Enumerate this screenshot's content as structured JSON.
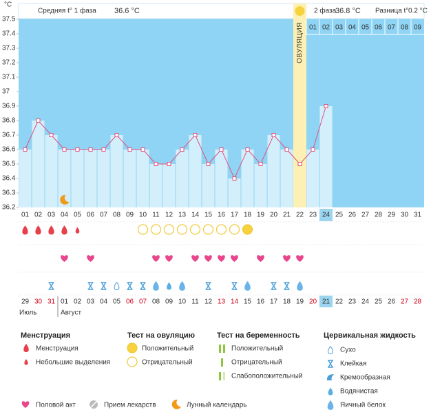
{
  "chart_data": {
    "type": "line",
    "unit": "°C",
    "categories": [
      "01",
      "02",
      "03",
      "04",
      "05",
      "06",
      "07",
      "08",
      "09",
      "10",
      "11",
      "12",
      "13",
      "14",
      "15",
      "16",
      "17",
      "18",
      "19",
      "20",
      "21",
      "22",
      "23",
      "24",
      "25",
      "26",
      "27",
      "28",
      "29",
      "30",
      "31"
    ],
    "values": [
      36.6,
      36.8,
      36.7,
      36.6,
      36.6,
      36.6,
      36.6,
      36.7,
      36.6,
      36.6,
      36.5,
      36.5,
      36.6,
      36.7,
      36.5,
      36.6,
      36.4,
      36.6,
      36.5,
      36.7,
      36.6,
      36.5,
      36.6,
      36.9,
      null,
      null,
      null,
      null,
      null,
      null,
      null
    ],
    "ylim": [
      36.2,
      37.5
    ],
    "yticks": [
      36.2,
      36.3,
      36.4,
      36.5,
      36.6,
      36.7,
      36.8,
      36.9,
      37,
      37.1,
      37.2,
      37.3,
      37.4,
      37.5
    ],
    "color": "#e0507e",
    "background": "#8fd4f4",
    "bar_color": "#d4effc",
    "ovulation_day": "22",
    "ovulation_label": "ОВУЛЯЦИЯ",
    "today": "24",
    "lunar_day": "04"
  },
  "header": {
    "phase1_label": "Средняя t° 1 фаза",
    "phase1_value": "36.6 °C",
    "phase2_label": "2 фаза",
    "phase2_value": "36.8 °C",
    "diff_label": "Разница t°",
    "diff_value": "0.2 °C",
    "phase2_days": [
      "01",
      "02",
      "03",
      "04",
      "05",
      "06",
      "07",
      "08",
      "09"
    ]
  },
  "rows": {
    "menstruation": [
      "heavy",
      "heavy",
      "heavy",
      "heavy",
      "light",
      null,
      null,
      null,
      null,
      null,
      null,
      null,
      null,
      null,
      null,
      null,
      null,
      null,
      null,
      null,
      null,
      null,
      null,
      null,
      null,
      null,
      null,
      null,
      null,
      null,
      null
    ],
    "ovulation_test": [
      null,
      null,
      null,
      null,
      null,
      null,
      null,
      null,
      null,
      "negative",
      "negative",
      "negative",
      "negative",
      "negative",
      "negative",
      "negative",
      "negative",
      "positive",
      null,
      null,
      null,
      null,
      null,
      null,
      null,
      null,
      null,
      null,
      null,
      null,
      null
    ],
    "intercourse": [
      false,
      false,
      false,
      true,
      false,
      true,
      false,
      false,
      false,
      false,
      true,
      true,
      false,
      true,
      true,
      true,
      true,
      false,
      true,
      false,
      true,
      true,
      false,
      false,
      false,
      false,
      false,
      false,
      false,
      false,
      false
    ],
    "cervical_fluid": [
      null,
      null,
      "sticky",
      null,
      null,
      "sticky",
      "sticky",
      "dry",
      "sticky",
      "sticky",
      "egg_white",
      "watery",
      "egg_white",
      null,
      "sticky",
      null,
      "sticky",
      "egg_white",
      null,
      "sticky",
      "sticky",
      "egg_white",
      null,
      null,
      null,
      null,
      null,
      null,
      null,
      null,
      null
    ]
  },
  "calendar": {
    "dates": [
      "29",
      "30",
      "31",
      "01",
      "02",
      "03",
      "04",
      "05",
      "06",
      "07",
      "08",
      "09",
      "10",
      "11",
      "12",
      "13",
      "14",
      "15",
      "16",
      "17",
      "18",
      "19",
      "20",
      "21",
      "22",
      "23",
      "24",
      "25",
      "26",
      "27",
      "28"
    ],
    "weekend": [
      false,
      true,
      true,
      false,
      false,
      false,
      false,
      false,
      true,
      true,
      false,
      false,
      false,
      false,
      false,
      true,
      true,
      false,
      false,
      false,
      false,
      false,
      true,
      false,
      false,
      false,
      false,
      false,
      false,
      true,
      true
    ],
    "weekend_color": "#d0021b",
    "months": [
      "Июль",
      "Август"
    ]
  },
  "legend": {
    "menstruation": {
      "title": "Менструация",
      "items": [
        "Менструация",
        "Небольшие выделения"
      ]
    },
    "ovulation_test": {
      "title": "Тест на овуляцию",
      "items": [
        "Положительный",
        "Отрицательный"
      ]
    },
    "pregnancy_test": {
      "title": "Тест на беременность",
      "items": [
        "Положительный",
        "Отрицательный",
        "Слабоположительный"
      ]
    },
    "cervical_fluid": {
      "title": "Цервикальная жидкость",
      "items": [
        "Сухо",
        "Клейкая",
        "Кремообразная",
        "Водянистая",
        "Яичный белок"
      ]
    },
    "other": [
      "Половой акт",
      "Прием лекарств",
      "Лунный календарь"
    ]
  }
}
